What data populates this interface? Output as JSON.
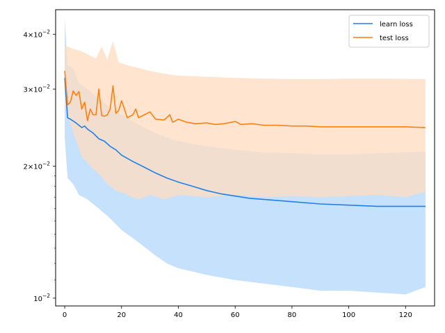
{
  "chart_data": {
    "type": "line",
    "title": "",
    "xlabel": "",
    "ylabel": "",
    "xlim": [
      -3.2,
      130.2
    ],
    "ylim": [
      0.0096,
      0.0455
    ],
    "yscale": "log",
    "grid": false,
    "legend_position": "top-right",
    "x_ticks": [
      0,
      20,
      40,
      60,
      80,
      100,
      120
    ],
    "x_tick_labels": [
      "0",
      "20",
      "40",
      "60",
      "80",
      "100",
      "120"
    ],
    "y_ticks": [
      0.01,
      0.02,
      0.03,
      0.04
    ],
    "y_tick_labels": [
      {
        "base": "10",
        "exp": "−2"
      },
      {
        "base": "2×10",
        "exp": "−2"
      },
      {
        "base": "3×10",
        "exp": "−2"
      },
      {
        "base": "4×10",
        "exp": "−2"
      }
    ],
    "series": [
      {
        "name": "learn loss",
        "color": "#1f7fe8",
        "band_color": "#bcdcfb",
        "points": [
          [
            0,
            0.0318
          ],
          [
            1,
            0.0258
          ],
          [
            2,
            0.0256
          ],
          [
            4,
            0.0251
          ],
          [
            6,
            0.0245
          ],
          [
            7,
            0.0247
          ],
          [
            8,
            0.0243
          ],
          [
            10,
            0.0238
          ],
          [
            12,
            0.0231
          ],
          [
            14,
            0.0228
          ],
          [
            16,
            0.0222
          ],
          [
            18,
            0.0218
          ],
          [
            20,
            0.0212
          ],
          [
            24,
            0.0205
          ],
          [
            28,
            0.0199
          ],
          [
            32,
            0.0193
          ],
          [
            36,
            0.0188
          ],
          [
            40,
            0.0184
          ],
          [
            45,
            0.018
          ],
          [
            50,
            0.0176
          ],
          [
            55,
            0.0173
          ],
          [
            60,
            0.0171
          ],
          [
            65,
            0.0169
          ],
          [
            70,
            0.0168
          ],
          [
            80,
            0.0166
          ],
          [
            90,
            0.0164
          ],
          [
            100,
            0.0163
          ],
          [
            110,
            0.0162
          ],
          [
            127,
            0.0162
          ]
        ],
        "band_upper": [
          [
            0,
            0.0435
          ],
          [
            1,
            0.034
          ],
          [
            3,
            0.0335
          ],
          [
            5,
            0.031
          ],
          [
            8,
            0.03
          ],
          [
            12,
            0.0285
          ],
          [
            16,
            0.0272
          ],
          [
            20,
            0.0262
          ],
          [
            24,
            0.0253
          ],
          [
            28,
            0.0245
          ],
          [
            32,
            0.0238
          ],
          [
            36,
            0.0232
          ],
          [
            40,
            0.0228
          ],
          [
            50,
            0.0222
          ],
          [
            60,
            0.0218
          ],
          [
            70,
            0.0215
          ],
          [
            80,
            0.0214
          ],
          [
            90,
            0.0213
          ],
          [
            100,
            0.0213
          ],
          [
            110,
            0.0214
          ],
          [
            127,
            0.0216
          ]
        ],
        "band_lower": [
          [
            0,
            0.0232
          ],
          [
            1,
            0.0188
          ],
          [
            3,
            0.0182
          ],
          [
            5,
            0.0172
          ],
          [
            8,
            0.0168
          ],
          [
            12,
            0.016
          ],
          [
            16,
            0.0152
          ],
          [
            20,
            0.0143
          ],
          [
            24,
            0.0137
          ],
          [
            28,
            0.0131
          ],
          [
            32,
            0.0125
          ],
          [
            36,
            0.012
          ],
          [
            40,
            0.0117
          ],
          [
            50,
            0.0113
          ],
          [
            60,
            0.011
          ],
          [
            70,
            0.0108
          ],
          [
            80,
            0.0106
          ],
          [
            90,
            0.0104
          ],
          [
            100,
            0.0104
          ],
          [
            110,
            0.0103
          ],
          [
            120,
            0.0102
          ],
          [
            127,
            0.0106
          ]
        ]
      },
      {
        "name": "test loss",
        "color": "#ff7f0e",
        "band_color": "#ffdcbf",
        "points": [
          [
            0,
            0.033
          ],
          [
            1,
            0.0276
          ],
          [
            2,
            0.028
          ],
          [
            3,
            0.0297
          ],
          [
            4,
            0.029
          ],
          [
            5,
            0.0296
          ],
          [
            6,
            0.027
          ],
          [
            7,
            0.028
          ],
          [
            8,
            0.0254
          ],
          [
            9,
            0.027
          ],
          [
            10,
            0.0262
          ],
          [
            11,
            0.0262
          ],
          [
            12,
            0.03
          ],
          [
            13,
            0.0261
          ],
          [
            14,
            0.026
          ],
          [
            15,
            0.0262
          ],
          [
            16,
            0.027
          ],
          [
            17,
            0.0305
          ],
          [
            18,
            0.0264
          ],
          [
            19,
            0.0268
          ],
          [
            20,
            0.0282
          ],
          [
            22,
            0.0258
          ],
          [
            24,
            0.0262
          ],
          [
            25,
            0.027
          ],
          [
            26,
            0.0258
          ],
          [
            28,
            0.0262
          ],
          [
            30,
            0.0266
          ],
          [
            32,
            0.0256
          ],
          [
            35,
            0.0255
          ],
          [
            37,
            0.0262
          ],
          [
            38,
            0.0252
          ],
          [
            40,
            0.0256
          ],
          [
            43,
            0.0252
          ],
          [
            46,
            0.025
          ],
          [
            50,
            0.0251
          ],
          [
            53,
            0.0249
          ],
          [
            56,
            0.025
          ],
          [
            60,
            0.0253
          ],
          [
            62,
            0.0249
          ],
          [
            66,
            0.025
          ],
          [
            70,
            0.0248
          ],
          [
            75,
            0.0248
          ],
          [
            80,
            0.0247
          ],
          [
            85,
            0.0247
          ],
          [
            90,
            0.0246
          ],
          [
            95,
            0.0246
          ],
          [
            100,
            0.0246
          ],
          [
            110,
            0.0246
          ],
          [
            120,
            0.0246
          ],
          [
            127,
            0.0245
          ]
        ],
        "band_upper": [
          [
            0,
            0.0378
          ],
          [
            3,
            0.037
          ],
          [
            5,
            0.0368
          ],
          [
            8,
            0.036
          ],
          [
            11,
            0.0352
          ],
          [
            13,
            0.0375
          ],
          [
            15,
            0.035
          ],
          [
            17,
            0.0385
          ],
          [
            19,
            0.0345
          ],
          [
            22,
            0.034
          ],
          [
            26,
            0.0335
          ],
          [
            30,
            0.033
          ],
          [
            35,
            0.0325
          ],
          [
            40,
            0.0322
          ],
          [
            50,
            0.032
          ],
          [
            60,
            0.0318
          ],
          [
            70,
            0.0317
          ],
          [
            80,
            0.0316
          ],
          [
            90,
            0.0316
          ],
          [
            100,
            0.0317
          ],
          [
            110,
            0.0317
          ],
          [
            127,
            0.0316
          ]
        ],
        "band_lower": [
          [
            0,
            0.0276
          ],
          [
            3,
            0.0238
          ],
          [
            6,
            0.021
          ],
          [
            9,
            0.02
          ],
          [
            12,
            0.0192
          ],
          [
            15,
            0.0182
          ],
          [
            18,
            0.0176
          ],
          [
            22,
            0.0172
          ],
          [
            26,
            0.0168
          ],
          [
            30,
            0.0172
          ],
          [
            35,
            0.0168
          ],
          [
            40,
            0.0172
          ],
          [
            50,
            0.017
          ],
          [
            60,
            0.0172
          ],
          [
            70,
            0.017
          ],
          [
            80,
            0.0171
          ],
          [
            90,
            0.017
          ],
          [
            100,
            0.0171
          ],
          [
            110,
            0.0172
          ],
          [
            120,
            0.017
          ],
          [
            127,
            0.0175
          ]
        ]
      }
    ]
  }
}
